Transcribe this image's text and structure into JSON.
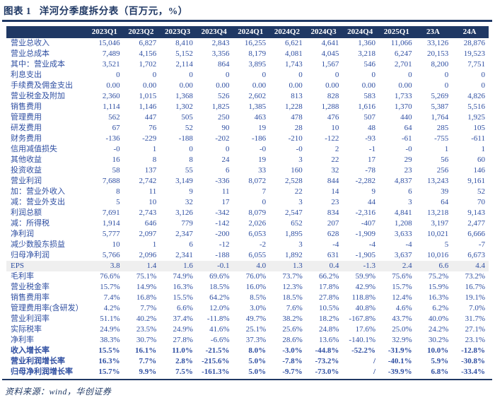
{
  "title": "图表 1   洋河分季度拆分表（百万元，%）",
  "source_note": "资料来源：wind，华创证券",
  "colors": {
    "navy": "#1F3864",
    "body_text_blue": "#2F4FA2",
    "header_text": "#FFFFFF",
    "eps_row_bg": "#EFEFEF",
    "page_bg": "#FFFFFF"
  },
  "chart_data": {
    "type": "table",
    "title": "洋河分季度拆分表（百万元，%）",
    "figure_label": "图表 1",
    "columns": [
      "2023Q1",
      "2023Q2",
      "2023Q3",
      "2023Q4",
      "2024Q1",
      "2024Q2",
      "2024Q3",
      "2024Q4",
      "2025Q1",
      "23A",
      "24A"
    ],
    "rows": [
      {
        "label": "营业总收入",
        "style": "normal",
        "values": [
          "15,046",
          "6,827",
          "8,410",
          "2,843",
          "16,255",
          "6,621",
          "4,641",
          "1,360",
          "11,066",
          "33,126",
          "28,876"
        ]
      },
      {
        "label": "营业总成本",
        "style": "normal",
        "values": [
          "7,489",
          "4,156",
          "5,152",
          "3,356",
          "8,179",
          "4,081",
          "4,045",
          "3,218",
          "6,247",
          "20,153",
          "19,523"
        ]
      },
      {
        "label": "其中：营业成本",
        "style": "normal",
        "values": [
          "3,521",
          "1,702",
          "2,114",
          "864",
          "3,895",
          "1,743",
          "1,567",
          "546",
          "2,701",
          "8,200",
          "7,751"
        ]
      },
      {
        "label": "利息支出",
        "style": "normal",
        "values": [
          "0",
          "0",
          "0",
          "0",
          "0",
          "0",
          "0",
          "0",
          "0",
          "0",
          "0"
        ]
      },
      {
        "label": "手续费及佣金支出",
        "style": "normal",
        "values": [
          "0.00",
          "0.00",
          "0.00",
          "0.00",
          "0.00",
          "0.00",
          "0.00",
          "0.00",
          "0.00",
          "0",
          "0"
        ]
      },
      {
        "label": "营业税金及附加",
        "style": "normal",
        "values": [
          "2,360",
          "1,015",
          "1,368",
          "526",
          "2,602",
          "813",
          "828",
          "583",
          "1,733",
          "5,269",
          "4,826"
        ]
      },
      {
        "label": "销售费用",
        "style": "normal",
        "values": [
          "1,114",
          "1,146",
          "1,302",
          "1,825",
          "1,385",
          "1,228",
          "1,288",
          "1,616",
          "1,370",
          "5,387",
          "5,516"
        ]
      },
      {
        "label": "管理费用",
        "style": "normal",
        "values": [
          "562",
          "447",
          "505",
          "250",
          "463",
          "478",
          "476",
          "507",
          "440",
          "1,764",
          "1,925"
        ]
      },
      {
        "label": "研发费用",
        "style": "normal",
        "values": [
          "67",
          "76",
          "52",
          "90",
          "19",
          "28",
          "10",
          "48",
          "64",
          "285",
          "105"
        ]
      },
      {
        "label": "财务费用",
        "style": "normal",
        "values": [
          "-136",
          "-229",
          "-188",
          "-202",
          "-186",
          "-210",
          "-122",
          "-93",
          "-61",
          "-755",
          "-611"
        ]
      },
      {
        "label": "信用减值损失",
        "style": "normal",
        "values": [
          "-0",
          "1",
          "0",
          "0",
          "-0",
          "-0",
          "2",
          "-1",
          "-0",
          "1",
          "1"
        ]
      },
      {
        "label": "其他收益",
        "style": "normal",
        "values": [
          "16",
          "8",
          "8",
          "24",
          "19",
          "3",
          "22",
          "17",
          "29",
          "56",
          "60"
        ]
      },
      {
        "label": "投资收益",
        "style": "normal",
        "values": [
          "58",
          "137",
          "55",
          "6",
          "33",
          "160",
          "32",
          "-78",
          "23",
          "256",
          "146"
        ]
      },
      {
        "label": "营业利润",
        "style": "normal",
        "values": [
          "7,688",
          "2,742",
          "3,149",
          "-336",
          "8,072",
          "2,528",
          "844",
          "-2,282",
          "4,837",
          "13,243",
          "9,161"
        ]
      },
      {
        "label": "加：营业外收入",
        "style": "normal",
        "values": [
          "8",
          "11",
          "9",
          "11",
          "7",
          "22",
          "14",
          "9",
          "6",
          "39",
          "52"
        ]
      },
      {
        "label": "减：营业外支出",
        "style": "normal",
        "values": [
          "5",
          "10",
          "32",
          "17",
          "0",
          "3",
          "23",
          "44",
          "3",
          "64",
          "70"
        ]
      },
      {
        "label": "利润总额",
        "style": "normal",
        "values": [
          "7,691",
          "2,743",
          "3,126",
          "-342",
          "8,079",
          "2,547",
          "834",
          "-2,316",
          "4,841",
          "13,218",
          "9,143"
        ]
      },
      {
        "label": "减：所得税",
        "style": "normal",
        "values": [
          "1,914",
          "646",
          "779",
          "-142",
          "2,026",
          "652",
          "207",
          "-407",
          "1,208",
          "3,197",
          "2,477"
        ]
      },
      {
        "label": "净利润",
        "style": "normal",
        "values": [
          "5,777",
          "2,097",
          "2,347",
          "-200",
          "6,053",
          "1,895",
          "628",
          "-1,909",
          "3,633",
          "10,021",
          "6,666"
        ]
      },
      {
        "label": "减少数股东损益",
        "style": "normal",
        "values": [
          "10",
          "1",
          "6",
          "-12",
          "-2",
          "3",
          "-4",
          "-4",
          "-4",
          "5",
          "-7"
        ]
      },
      {
        "label": "归母净利润",
        "style": "normal",
        "values": [
          "5,766",
          "2,096",
          "2,341",
          "-188",
          "6,055",
          "1,892",
          "631",
          "-1,905",
          "3,637",
          "10,016",
          "6,673"
        ]
      },
      {
        "label": "EPS",
        "style": "eps",
        "values": [
          "3.8",
          "1.4",
          "1.6",
          "-0.1",
          "4.0",
          "1.3",
          "0.4",
          "-1.3",
          "2.4",
          "6.6",
          "4.4"
        ]
      },
      {
        "label": "毛利率",
        "style": "normal",
        "values": [
          "76.6%",
          "75.1%",
          "74.9%",
          "69.6%",
          "76.0%",
          "73.7%",
          "66.2%",
          "59.9%",
          "75.6%",
          "75.2%",
          "73.2%"
        ]
      },
      {
        "label": "营业税金率",
        "style": "normal",
        "values": [
          "15.7%",
          "14.9%",
          "16.3%",
          "18.5%",
          "16.0%",
          "12.3%",
          "17.8%",
          "42.9%",
          "15.7%",
          "15.9%",
          "16.7%"
        ]
      },
      {
        "label": "销售费用率",
        "style": "normal",
        "values": [
          "7.4%",
          "16.8%",
          "15.5%",
          "64.2%",
          "8.5%",
          "18.5%",
          "27.8%",
          "118.8%",
          "12.4%",
          "16.3%",
          "19.1%"
        ]
      },
      {
        "label": "管理费用率(含研发）",
        "style": "normal",
        "values": [
          "4.2%",
          "7.7%",
          "6.6%",
          "12.0%",
          "3.0%",
          "7.6%",
          "10.5%",
          "40.8%",
          "4.6%",
          "6.2%",
          "7.0%"
        ]
      },
      {
        "label": "营业利润率",
        "style": "normal",
        "values": [
          "51.1%",
          "40.2%",
          "37.4%",
          "-11.8%",
          "49.7%",
          "38.2%",
          "18.2%",
          "-167.8%",
          "43.7%",
          "40.0%",
          "31.7%"
        ]
      },
      {
        "label": "实际税率",
        "style": "normal",
        "values": [
          "24.9%",
          "23.5%",
          "24.9%",
          "41.6%",
          "25.1%",
          "25.6%",
          "24.8%",
          "17.6%",
          "25.0%",
          "24.2%",
          "27.1%"
        ]
      },
      {
        "label": "净利率",
        "style": "normal",
        "values": [
          "38.3%",
          "30.7%",
          "27.8%",
          "-6.6%",
          "37.3%",
          "28.6%",
          "13.6%",
          "-140.1%",
          "32.9%",
          "30.2%",
          "23.1%"
        ]
      },
      {
        "label": "收入增长率",
        "style": "bold",
        "values": [
          "15.5%",
          "16.1%",
          "11.0%",
          "-21.5%",
          "8.0%",
          "-3.0%",
          "-44.8%",
          "-52.2%",
          "-31.9%",
          "10.0%",
          "-12.8%"
        ]
      },
      {
        "label": "营业利润增长率",
        "style": "bold",
        "values": [
          "16.3%",
          "7.7%",
          "2.8%",
          "-215.6%",
          "5.0%",
          "-7.8%",
          "-73.2%",
          "/",
          "-40.1%",
          "5.9%",
          "-30.8%"
        ]
      },
      {
        "label": "归母净利润增长率",
        "style": "bold",
        "values": [
          "15.7%",
          "9.9%",
          "7.5%",
          "-161.3%",
          "5.0%",
          "-9.7%",
          "-73.0%",
          "/",
          "-39.9%",
          "6.8%",
          "-33.4%"
        ]
      }
    ]
  }
}
